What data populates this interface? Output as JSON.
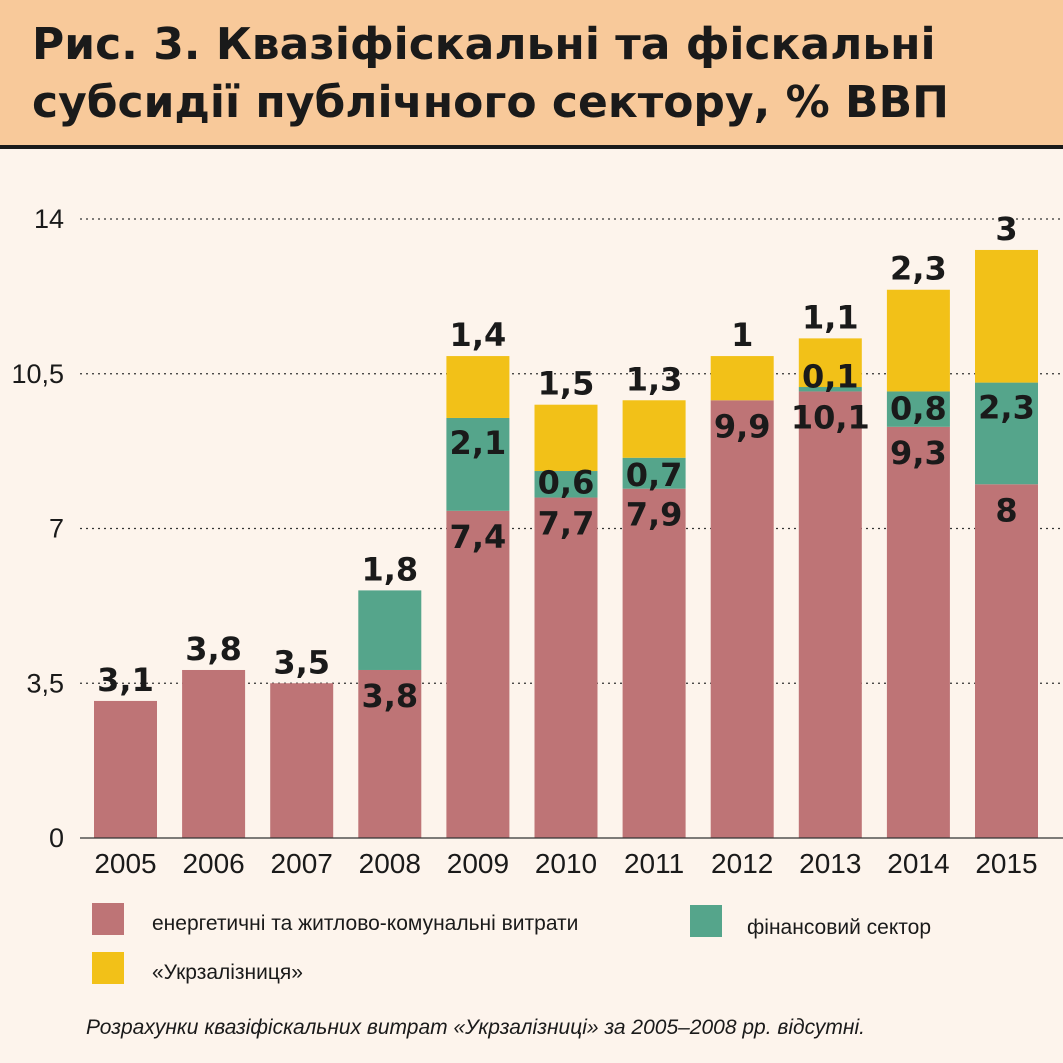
{
  "title": "Рис. 3. Квазіфіскальні та фіскальні субсидії публічного сектору, % ВВП",
  "footnote": "Розрахунки квазіфіскальних витрат «Укрзалізниці» за 2005–2008 рр. відсутні.",
  "colors": {
    "energy": "#be7476",
    "financial": "#55a58b",
    "railway": "#f2c118",
    "grid": "#333333",
    "text": "#1a1a1a"
  },
  "chart_data": {
    "type": "bar",
    "stacked": true,
    "categories": [
      "2005",
      "2006",
      "2007",
      "2008",
      "2009",
      "2010",
      "2011",
      "2012",
      "2013",
      "2014",
      "2015"
    ],
    "series": [
      {
        "key": "energy",
        "name": "енергетичні та житлово-комунальні витрати",
        "values": [
          3.1,
          3.8,
          3.5,
          3.8,
          7.4,
          7.7,
          7.9,
          9.9,
          10.1,
          9.3,
          8
        ],
        "labels": [
          "3,1",
          "3,8",
          "3,5",
          "3,8",
          "7,4",
          "7,7",
          "7,9",
          "9,9",
          "10,1",
          "9,3",
          "8"
        ]
      },
      {
        "key": "financial",
        "name": "фінансовий сектор",
        "values": [
          0,
          0,
          0,
          1.8,
          2.1,
          0.6,
          0.7,
          0,
          0.1,
          0.8,
          2.3
        ],
        "labels": [
          "",
          "",
          "",
          "1,8",
          "2,1",
          "0,6",
          "0,7",
          "",
          "0,1",
          "0,8",
          "2,3"
        ]
      },
      {
        "key": "railway",
        "name": "«Укрзалізниця»",
        "values": [
          0,
          0,
          0,
          0,
          1.4,
          1.5,
          1.3,
          1,
          1.1,
          2.3,
          3
        ],
        "labels": [
          "",
          "",
          "",
          "",
          "1,4",
          "1,5",
          "1,3",
          "1",
          "1,1",
          "2,3",
          "3"
        ]
      }
    ],
    "yticks": [
      0,
      3.5,
      7,
      10.5,
      14
    ],
    "ytick_labels": [
      "0",
      "3,5",
      "7",
      "10,5",
      "14"
    ],
    "ylim": [
      0,
      14
    ],
    "grid": "horizontal dotted",
    "legend_position": "bottom"
  }
}
